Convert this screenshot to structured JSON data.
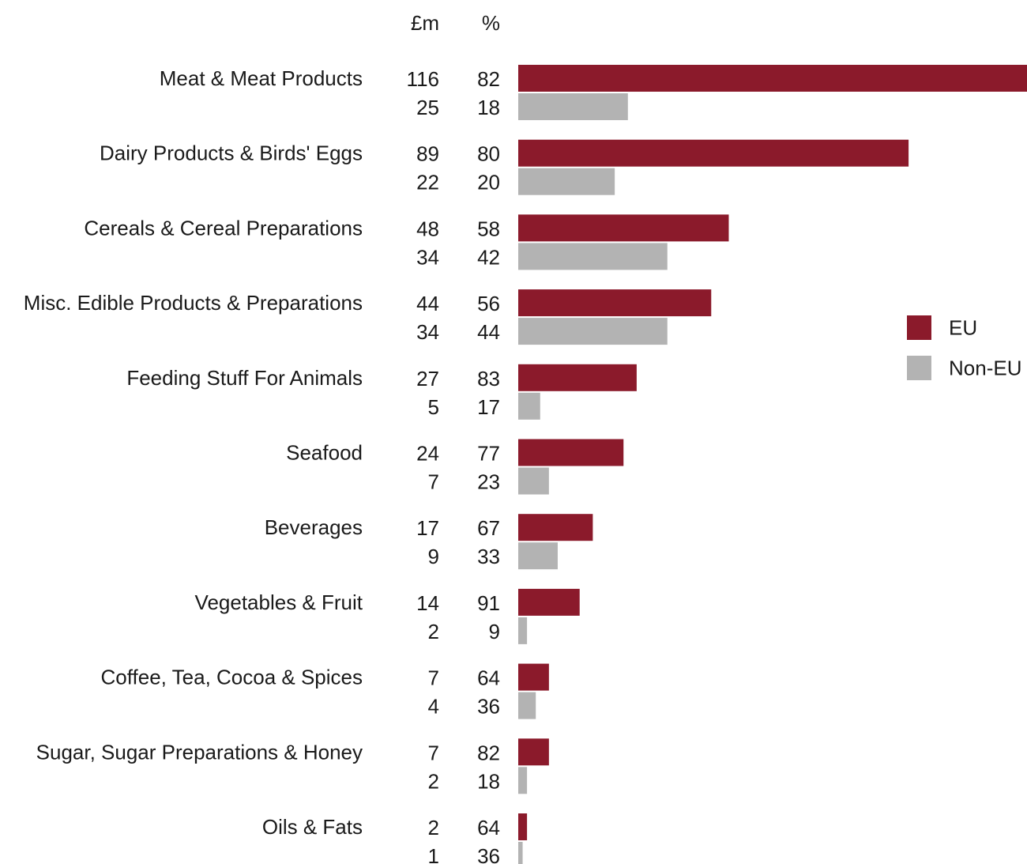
{
  "chart_data": {
    "type": "bar",
    "orientation": "horizontal",
    "column_headers": {
      "value": "£m",
      "share": "%"
    },
    "categories": [
      "Meat & Meat Products",
      "Dairy Products & Birds' Eggs",
      "Cereals & Cereal Preparations",
      "Misc. Edible Products & Preparations",
      "Feeding Stuff For Animals",
      "Seafood",
      "Beverages",
      "Vegetables & Fruit",
      "Coffee, Tea, Cocoa & Spices",
      "Sugar, Sugar Preparations & Honey",
      "Oils & Fats"
    ],
    "series": [
      {
        "name": "EU",
        "color": "#8b1a2b",
        "values": [
          116,
          89,
          48,
          44,
          27,
          24,
          17,
          14,
          7,
          7,
          2
        ],
        "percent": [
          82,
          80,
          58,
          56,
          83,
          77,
          67,
          91,
          64,
          82,
          64
        ]
      },
      {
        "name": "Non-EU",
        "color": "#b3b3b3",
        "values": [
          25,
          22,
          34,
          34,
          5,
          7,
          9,
          2,
          4,
          2,
          1
        ],
        "percent": [
          18,
          20,
          42,
          44,
          17,
          23,
          33,
          9,
          36,
          18,
          36
        ]
      }
    ],
    "xlim": [
      0,
      116
    ],
    "grid": false,
    "legend_position": "right"
  }
}
